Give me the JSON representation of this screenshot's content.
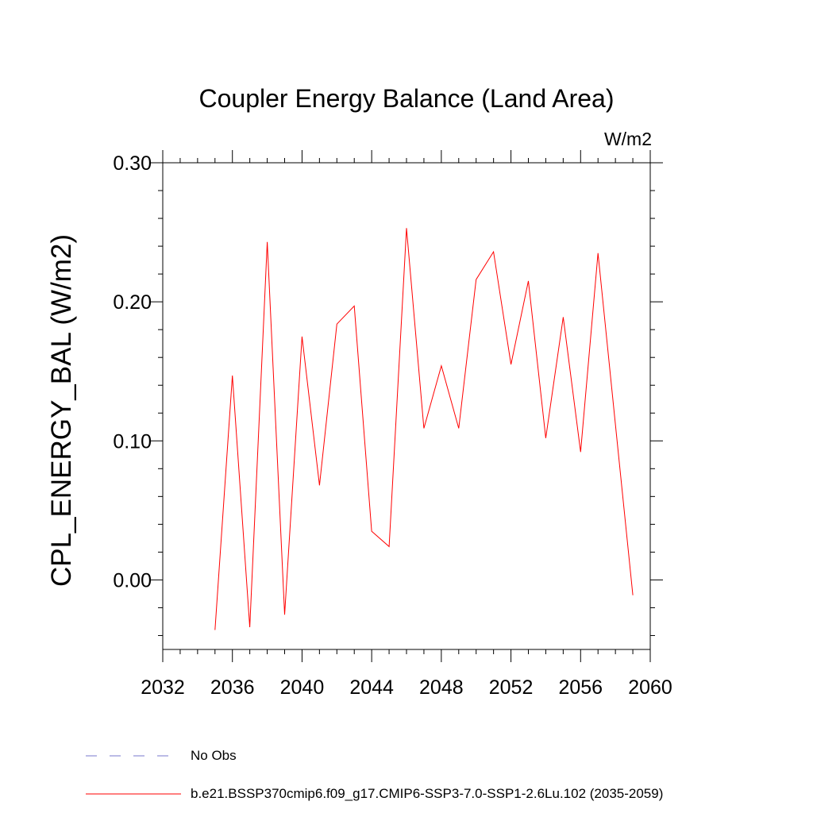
{
  "chart_data": {
    "type": "line",
    "title": "Coupler Energy Balance (Land Area)",
    "units": "W/m2",
    "ylabel": "CPL_ENERGY_BAL  (W/m2)",
    "xlim": [
      2032,
      2060
    ],
    "ylim": [
      -0.05,
      0.3
    ],
    "x_ticks": [
      "2032",
      "2036",
      "2040",
      "2044",
      "2048",
      "2052",
      "2056",
      "2060"
    ],
    "y_ticks": [
      "0.30",
      "0.20",
      "0.10",
      "0.00"
    ],
    "grid": false,
    "legend_position": "bottom",
    "series": [
      {
        "name": "b.e21.BSSP370cmip6.f09_g17.CMIP6-SSP3-7.0-SSP1-2.6Lu.102 (2035-2059)",
        "color": "#ff0000",
        "style": "solid",
        "x": [
          2035,
          2036,
          2037,
          2038,
          2039,
          2040,
          2041,
          2042,
          2043,
          2044,
          2045,
          2046,
          2047,
          2048,
          2049,
          2050,
          2051,
          2052,
          2053,
          2054,
          2055,
          2056,
          2057,
          2058,
          2059
        ],
        "y": [
          -0.036,
          0.147,
          -0.034,
          0.243,
          -0.025,
          0.175,
          0.068,
          0.184,
          0.197,
          0.035,
          0.024,
          0.253,
          0.109,
          0.154,
          0.109,
          0.216,
          0.236,
          0.155,
          0.215,
          0.102,
          0.189,
          0.092,
          0.235,
          0.112,
          -0.011
        ]
      }
    ],
    "legend": [
      {
        "label": "No Obs",
        "color": "#7777cc",
        "style": "dashed"
      },
      {
        "label": "b.e21.BSSP370cmip6.f09_g17.CMIP6-SSP3-7.0-SSP1-2.6Lu.102 (2035-2059)",
        "color": "#ff0000",
        "style": "solid"
      }
    ]
  }
}
